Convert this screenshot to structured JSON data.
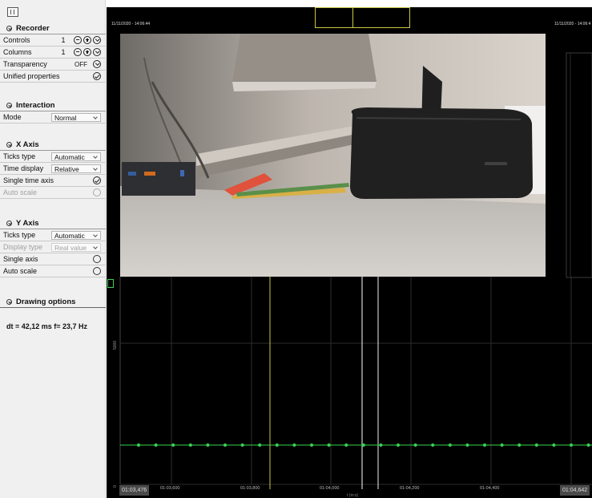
{
  "panel": {
    "recorder": {
      "title": "Recorder",
      "controls_label": "Controls",
      "controls_value": "1",
      "columns_label": "Columns",
      "columns_value": "1",
      "transparency_label": "Transparency",
      "transparency_value": "OFF",
      "unified_label": "Unified properties"
    },
    "interaction": {
      "title": "Interaction",
      "mode_label": "Mode",
      "mode_value": "Normal"
    },
    "x_axis": {
      "title": "X Axis",
      "ticks_label": "Ticks type",
      "ticks_value": "Automatic",
      "time_display_label": "Time display",
      "time_display_value": "Relative",
      "single_time_label": "Single time axis",
      "auto_scale_label": "Auto scale"
    },
    "y_axis": {
      "title": "Y Axis",
      "ticks_label": "Ticks type",
      "ticks_value": "Automatic",
      "display_type_label": "Display type",
      "display_type_value": "Real value",
      "single_axis_label": "Single axis",
      "auto_scale_label": "Auto scale"
    },
    "drawing": {
      "title": "Drawing options"
    },
    "dt_text": "dt = 42,12 ms  f= 23,7 Hz"
  },
  "workspace": {
    "timestamp_left": "11/11/2020 - 14:06:44",
    "timestamp_right": "11/11/2020 - 14:06:4",
    "y_tick_top": "5000",
    "y_tick_bottom": "0",
    "x_start": "01:03,476",
    "x_end": "01:04,642",
    "x_ticks": [
      "01:03,600",
      "01:03,800",
      "01:04,000",
      "01:04,200",
      "01:04,400"
    ],
    "x_unit": "t (m:s)",
    "line_color": "#39d353",
    "marker_color": "#c9c744"
  }
}
